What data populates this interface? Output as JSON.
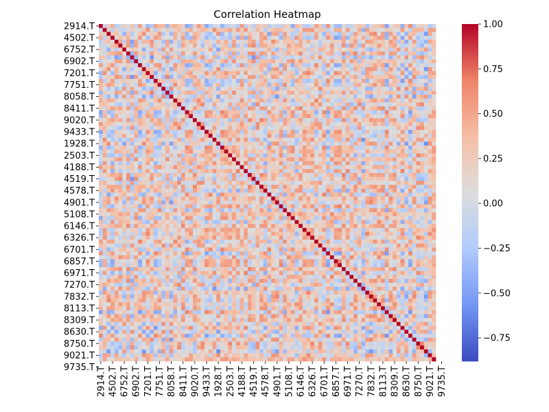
{
  "chart_data": {
    "type": "heatmap",
    "title": "Correlation Heatmap",
    "xlabel": "",
    "ylabel": "",
    "n_cells": 86,
    "tick_labels": [
      "2914.T",
      "4502.T",
      "6752.T",
      "6902.T",
      "7201.T",
      "7751.T",
      "8058.T",
      "8411.T",
      "9020.T",
      "9433.T",
      "1928.T",
      "2503.T",
      "4188.T",
      "4519.T",
      "4578.T",
      "4901.T",
      "5108.T",
      "6146.T",
      "6326.T",
      "6701.T",
      "6857.T",
      "6971.T",
      "7270.T",
      "7832.T",
      "8113.T",
      "8309.T",
      "8630.T",
      "8750.T",
      "9021.T",
      "9735.T"
    ],
    "tick_step": 3,
    "diagonal_value": 1.0,
    "colorbar": {
      "vmin": -0.88,
      "vmax": 1.0,
      "ticks": [
        1.0,
        0.75,
        0.5,
        0.25,
        0.0,
        -0.25,
        -0.5,
        -0.75
      ],
      "tick_labels": [
        "1.00",
        "0.75",
        "0.50",
        "0.25",
        "0.00",
        "−0.25",
        "−0.50",
        "−0.75"
      ]
    },
    "colormap": "coolwarm",
    "colormap_stops": [
      "#3b4cc0",
      "#7396f5",
      "#b0cbfc",
      "#dddddd",
      "#f6bfa6",
      "#ee8468",
      "#b40426"
    ]
  }
}
